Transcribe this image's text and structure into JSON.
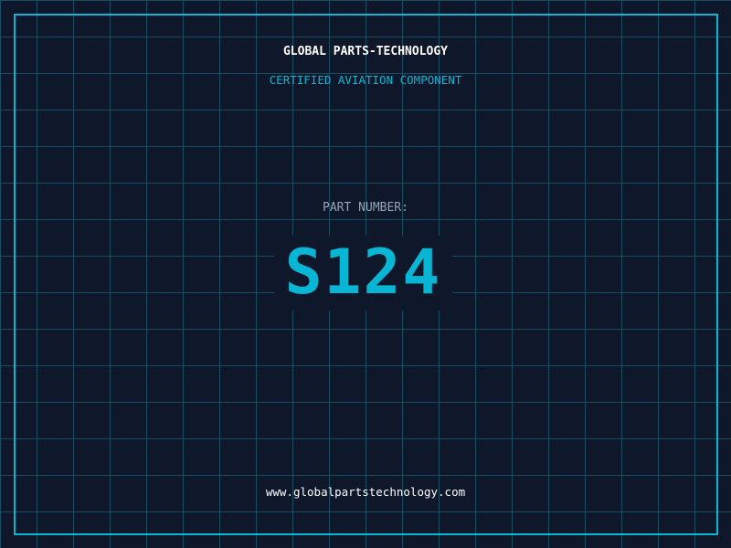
{
  "brand": "GLOBAL PARTS-TECHNOLOGY",
  "subtitle": "CERTIFIED AVIATION COMPONENT",
  "part_label": "PART NUMBER:",
  "part_number": "S124",
  "website": "www.globalpartstechnology.com",
  "colors": {
    "background": "#0f172a",
    "accent": "#06b6d4",
    "grid": "#164e63"
  }
}
